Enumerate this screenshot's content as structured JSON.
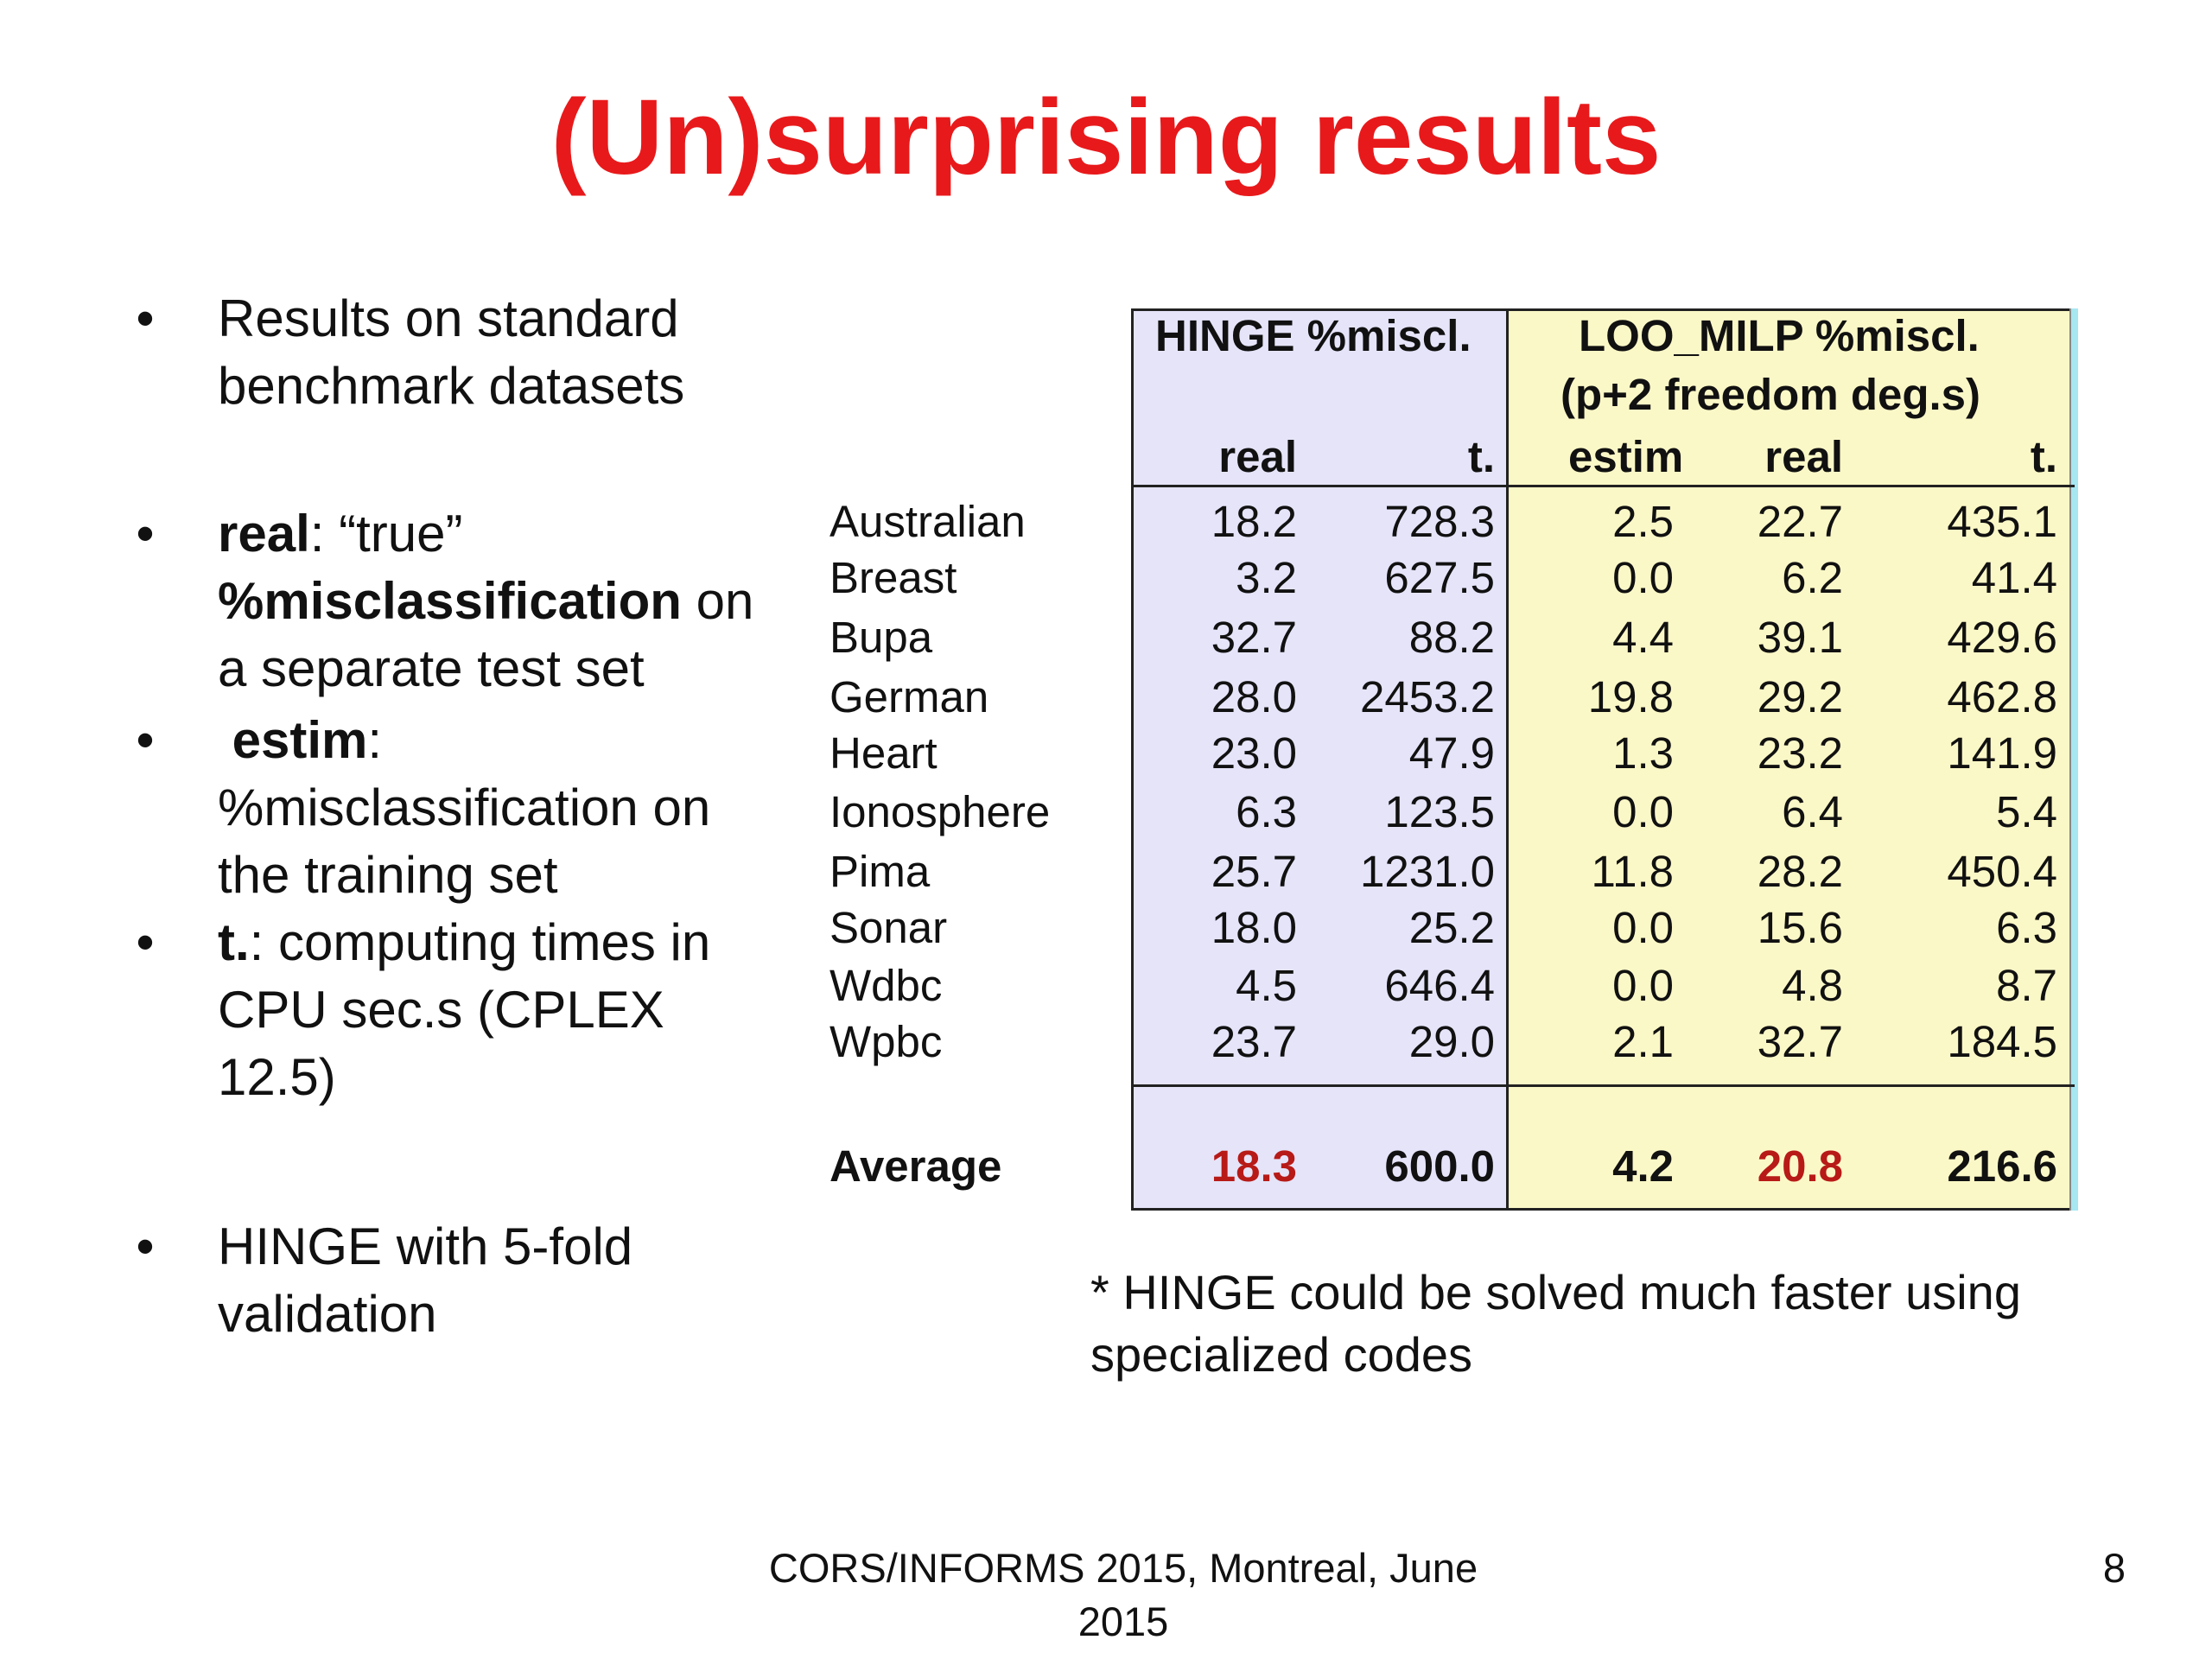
{
  "title": "(Un)surprising results",
  "bullets": {
    "b1": "Results on standard benchmark datasets",
    "b2": {
      "term": "real",
      "rest1": ": “true” ",
      "term2": "%misclassification",
      "rest2": " on a separate test set"
    },
    "b3": {
      "term": "estim",
      "rest": ": %misclassification on the training set"
    },
    "b4": {
      "term": "t.",
      "rest": ": computing times in CPU sec.s (CPLEX 12.5)"
    },
    "b5": "HINGE with 5-fold validation"
  },
  "table": {
    "hinge_header": "HINGE %miscl.",
    "loo_header_line1": "LOO_MILP %miscl.",
    "loo_header_line2": "(p+2 freedom deg.s)",
    "subheaders": [
      "real",
      "t.",
      "estim",
      "real",
      "t."
    ],
    "rows": [
      {
        "name": "Australian",
        "values": [
          "18.2",
          "728.3",
          "2.5",
          "22.7",
          "435.1"
        ]
      },
      {
        "name": "Breast",
        "values": [
          "3.2",
          "627.5",
          "0.0",
          "6.2",
          "41.4"
        ]
      },
      {
        "name": "Bupa",
        "values": [
          "32.7",
          "88.2",
          "4.4",
          "39.1",
          "429.6"
        ]
      },
      {
        "name": "German",
        "values": [
          "28.0",
          "2453.2",
          "19.8",
          "29.2",
          "462.8"
        ]
      },
      {
        "name": "Heart",
        "values": [
          "23.0",
          "47.9",
          "1.3",
          "23.2",
          "141.9"
        ]
      },
      {
        "name": "Ionosphere",
        "values": [
          "6.3",
          "123.5",
          "0.0",
          "6.4",
          "5.4"
        ]
      },
      {
        "name": "Pima",
        "values": [
          "25.7",
          "1231.0",
          "11.8",
          "28.2",
          "450.4"
        ]
      },
      {
        "name": "Sonar",
        "values": [
          "18.0",
          "25.2",
          "0.0",
          "15.6",
          "6.3"
        ]
      },
      {
        "name": "Wdbc",
        "values": [
          "4.5",
          "646.4",
          "0.0",
          "4.8",
          "8.7"
        ]
      },
      {
        "name": "Wpbc",
        "values": [
          "23.7",
          "29.0",
          "2.1",
          "32.7",
          "184.5"
        ]
      }
    ],
    "average": {
      "name": "Average",
      "values": [
        "18.3",
        "600.0",
        "4.2",
        "20.8",
        "216.6"
      ]
    }
  },
  "footnote": "* HINGE could be solved much faster using specialized codes",
  "footer": "CORS/INFORMS 2015, Montreal, June 2015",
  "page_number": "8",
  "colors": {
    "title": "#e8191b",
    "hinge_bg": "#e5e4f9",
    "loo_bg": "#fbf8c7",
    "highlight": "#b71a17",
    "edge": "#a6e7f1"
  }
}
